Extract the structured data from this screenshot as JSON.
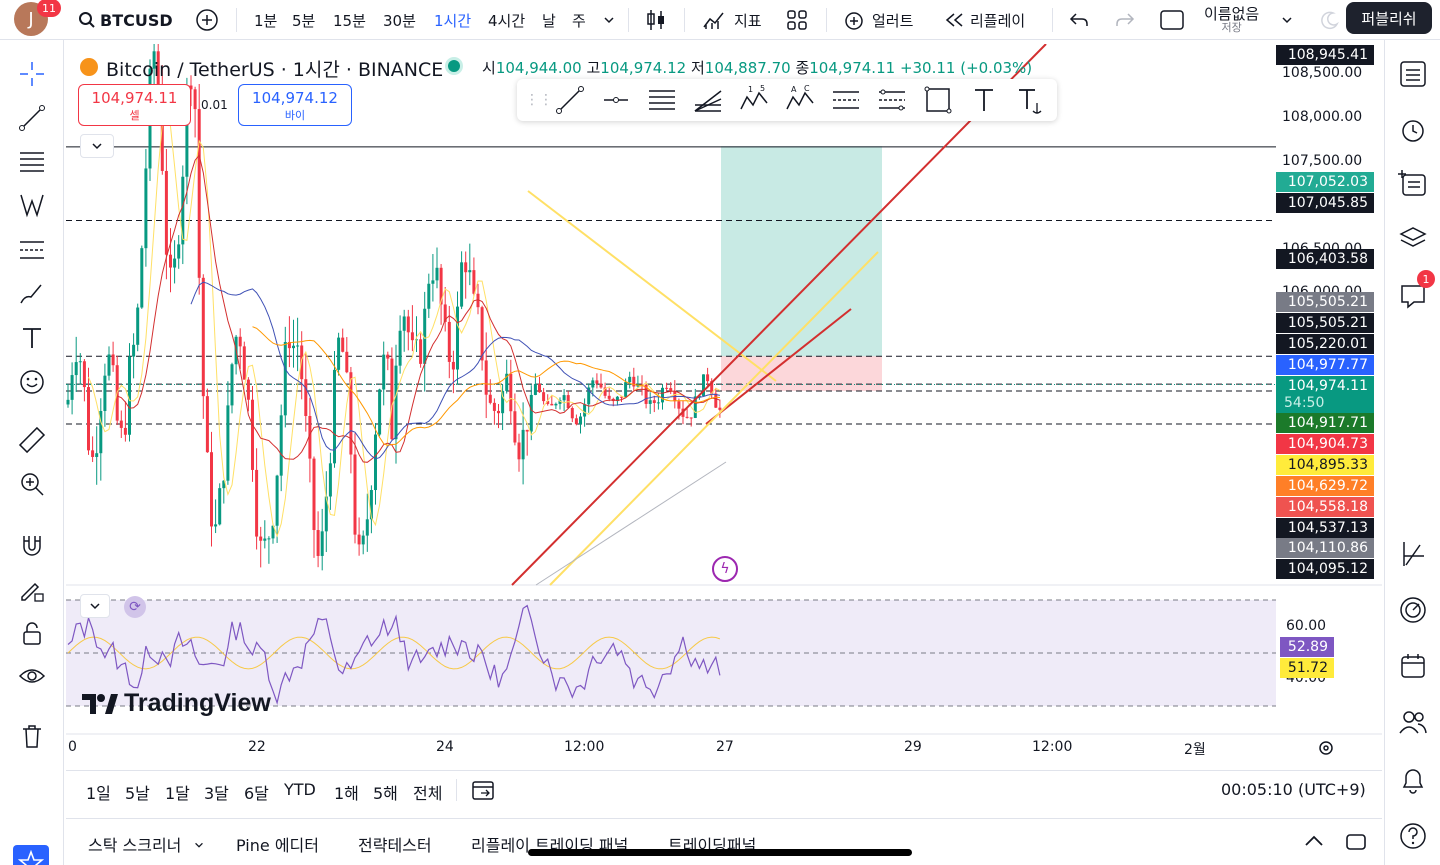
{
  "topbar": {
    "avatar_letter": "J",
    "notif_count": "11",
    "symbol": "BTCUSD",
    "intervals": [
      "1분",
      "5분",
      "15분",
      "30분",
      "1시간",
      "4시간",
      "날",
      "주"
    ],
    "active_interval": "1시간",
    "indicators_label": "지표",
    "alert_label": "얼러트",
    "replay_label": "리플레이",
    "layout_name": "이름없음",
    "layout_sub": "저장",
    "publish_label": "퍼블리쉬"
  },
  "legend": {
    "title": "Bitcoin / TetherUS · 1시간 · BINANCE",
    "open_label": "시",
    "open": "104,944.00",
    "high_label": "고",
    "high": "104,974.12",
    "low_label": "저",
    "low": "104,887.70",
    "close_label": "종",
    "close": "104,974.11",
    "change": "+30.11 (+0.03%)",
    "sell_price": "104,974.11",
    "sell_label": "셀",
    "spread": "0.01",
    "buy_price": "104,974.12",
    "buy_label": "바이"
  },
  "price_axis": {
    "ticks": [
      "108,500.00",
      "108,000.00",
      "107,500.00",
      "106,500.00",
      "106,000.00",
      "60.00",
      "40.00"
    ],
    "labels": [
      {
        "text": "108,945.41",
        "bg": "#131722",
        "color": "#ffffff"
      },
      {
        "text": "107,052.03",
        "bg": "#22ab94",
        "color": "#ffffff"
      },
      {
        "text": "107,045.85",
        "bg": "#131722",
        "color": "#ffffff"
      },
      {
        "text": "106,403.58",
        "bg": "#131722",
        "color": "#ffffff"
      },
      {
        "text": "105,505.21",
        "bg": "#787b86",
        "color": "#ffffff"
      },
      {
        "text": "105,505.21",
        "bg": "#131722",
        "color": "#ffffff"
      },
      {
        "text": "105,220.01",
        "bg": "#131722",
        "color": "#ffffff"
      },
      {
        "text": "104,977.77",
        "bg": "#2962ff",
        "color": "#ffffff"
      },
      {
        "text": "104,974.11",
        "bg": "#089981",
        "color": "#ffffff"
      },
      {
        "text": "54:50",
        "bg": "#089981",
        "color": "#c8efe7"
      },
      {
        "text": "104,917.71",
        "bg": "#1b7a2a",
        "color": "#ffffff"
      },
      {
        "text": "104,904.73",
        "bg": "#f23645",
        "color": "#ffffff"
      },
      {
        "text": "104,895.33",
        "bg": "#ffeb3b",
        "color": "#131722"
      },
      {
        "text": "104,629.72",
        "bg": "#ff7f27",
        "color": "#ffffff"
      },
      {
        "text": "104,558.18",
        "bg": "#ef5350",
        "color": "#ffffff"
      },
      {
        "text": "104,537.13",
        "bg": "#131722",
        "color": "#ffffff"
      },
      {
        "text": "104,110.86",
        "bg": "#787b86",
        "color": "#ffffff"
      },
      {
        "text": "104,095.12",
        "bg": "#131722",
        "color": "#ffffff"
      },
      {
        "text": "52.89",
        "bg": "#7e57c2",
        "color": "#ffffff"
      },
      {
        "text": "51.72",
        "bg": "#ffeb3b",
        "color": "#131722"
      }
    ]
  },
  "time_axis": {
    "ticks": [
      "0",
      "22",
      "24",
      "12:00",
      "27",
      "29",
      "12:00",
      "2월"
    ]
  },
  "range_bar": {
    "ranges": [
      "1일",
      "5날",
      "1달",
      "3달",
      "6달",
      "YTD",
      "1해",
      "5해",
      "전체"
    ],
    "clock": "00:05:10 (UTC+9)"
  },
  "panel_bar": {
    "tabs": [
      "스탁 스크리너",
      "Pine 에디터",
      "전략테스터",
      "리플레이 트레이딩 패널",
      "트레이딩패널"
    ]
  },
  "brand": {
    "logo_text": "TradingView"
  },
  "right_sidebar": {
    "chat_badge": "1"
  },
  "colors": {
    "up": "#089981",
    "down": "#f23645",
    "target_zone": "#22ab94",
    "stop_zone": "#f23645",
    "rsi_bg": "#7e57c2",
    "accent": "#2962ff"
  },
  "chart_data": {
    "type": "candlestick",
    "title": "Bitcoin / TetherUS · 1시간 · BINANCE",
    "ohlc_last": {
      "open": 104944.0,
      "high": 104974.12,
      "low": 104887.7,
      "close": 104974.11
    },
    "horizontal_levels": [
      107045.85,
      106403.58,
      105220.01,
      104977.77,
      104917.71,
      104629.72
    ],
    "position_tool": {
      "target": 107052.03,
      "entry": 105220.01,
      "stop": 104917.71
    },
    "rsi": {
      "value": 52.89,
      "ma": 51.72,
      "upper": 60,
      "lower": 40
    }
  }
}
